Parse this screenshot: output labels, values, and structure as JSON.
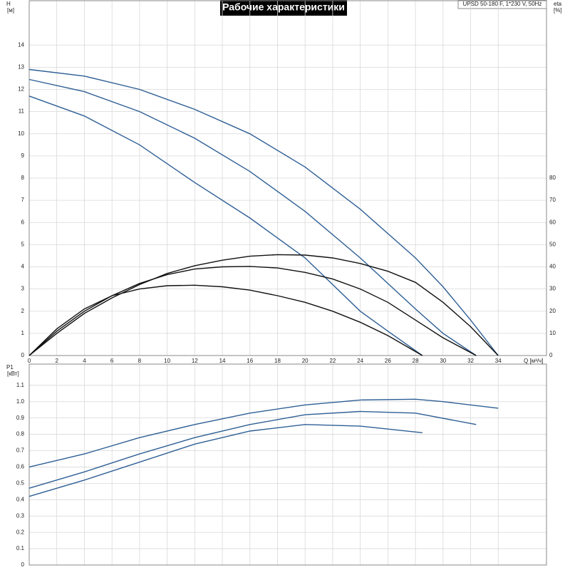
{
  "chart_data": [
    {
      "type": "line",
      "title": "Рабочие характеристики",
      "annotation": "UPSD 50-180 F, 1*230 V, 50Hz",
      "ylabel": [
        "H",
        "[м]"
      ],
      "y2label": [
        "eta",
        "[%]"
      ],
      "xlabel": "Q [м³/ч]",
      "xlim": [
        0,
        37.5
      ],
      "xticks": [
        0,
        2,
        4,
        6,
        8,
        10,
        12,
        14,
        16,
        18,
        20,
        22,
        24,
        26,
        28,
        30,
        32,
        34
      ],
      "ylim": [
        0,
        16
      ],
      "yticks": [
        0,
        1,
        2,
        3,
        4,
        5,
        6,
        7,
        8,
        9,
        10,
        11,
        12,
        13,
        14
      ],
      "y2lim": [
        0,
        160
      ],
      "y2ticks": [
        0,
        10,
        20,
        30,
        40,
        50,
        60,
        70,
        80
      ],
      "grid": true,
      "series": [
        {
          "color": "#2e5f95",
          "x": [
            0,
            4,
            8,
            12,
            16,
            20,
            24,
            28,
            30,
            32,
            34
          ],
          "values": [
            12.9,
            12.6,
            12.0,
            11.1,
            10.0,
            8.5,
            6.6,
            4.4,
            3.1,
            1.6,
            0
          ]
        },
        {
          "color": "#2e5f95",
          "x": [
            0,
            4,
            8,
            12,
            16,
            20,
            24,
            28,
            30,
            32.4
          ],
          "values": [
            12.45,
            11.9,
            11.0,
            9.8,
            8.3,
            6.5,
            4.4,
            2.1,
            1.0,
            0
          ]
        },
        {
          "color": "#2e5f95",
          "x": [
            0,
            4,
            8,
            12,
            16,
            20,
            24,
            26,
            28.5
          ],
          "values": [
            11.7,
            10.8,
            9.5,
            7.8,
            6.2,
            4.4,
            2.0,
            1.1,
            0
          ]
        },
        {
          "color": "#111111",
          "axis": "y2",
          "x": [
            0,
            2,
            4,
            6,
            8,
            10,
            12,
            14,
            16,
            18,
            20,
            22,
            24,
            26,
            28,
            30,
            32,
            34
          ],
          "values": [
            0,
            10,
            19,
            26,
            32,
            37,
            40.5,
            43,
            44.8,
            45.5,
            45.3,
            44,
            41.5,
            38,
            33,
            24,
            13,
            0
          ]
        },
        {
          "color": "#111111",
          "axis": "y2",
          "x": [
            0,
            2,
            4,
            6,
            8,
            10,
            12,
            14,
            16,
            18,
            20,
            22,
            24,
            26,
            28,
            30,
            32.4
          ],
          "values": [
            0,
            11,
            20,
            27,
            32.5,
            36.5,
            39,
            40,
            40.2,
            39.5,
            37.5,
            34.5,
            30,
            24,
            16,
            8,
            0
          ]
        },
        {
          "color": "#111111",
          "axis": "y2",
          "x": [
            0,
            2,
            4,
            6,
            8,
            10,
            12,
            14,
            16,
            18,
            20,
            22,
            24,
            26,
            28.5
          ],
          "values": [
            0,
            12,
            21,
            27,
            30,
            31.5,
            31.7,
            31,
            29.5,
            27,
            24,
            20,
            15,
            9,
            0
          ]
        }
      ]
    },
    {
      "type": "line",
      "ylabel": [
        "P1",
        "[кВт]"
      ],
      "xlim": [
        0,
        37.5
      ],
      "xticks": [
        0,
        2,
        4,
        6,
        8,
        10,
        12,
        14,
        16,
        18,
        20,
        22,
        24,
        26,
        28,
        30,
        32,
        34
      ],
      "xtick_labels": false,
      "ylim": [
        0,
        1.23
      ],
      "yticks": [
        0,
        0.1,
        0.2,
        0.3,
        0.4,
        0.5,
        0.6,
        0.7,
        0.8,
        0.9,
        {
          "value": 1,
          "label": "1.0"
        },
        1.1
      ],
      "grid": true,
      "series": [
        {
          "color": "#2e5f95",
          "x": [
            0,
            4,
            8,
            12,
            16,
            20,
            24,
            28,
            30,
            34
          ],
          "values": [
            0.6,
            0.68,
            0.78,
            0.86,
            0.93,
            0.98,
            1.01,
            1.015,
            1.0,
            0.96
          ]
        },
        {
          "color": "#2e5f95",
          "x": [
            0,
            4,
            8,
            12,
            16,
            20,
            24,
            28,
            32.4
          ],
          "values": [
            0.47,
            0.57,
            0.68,
            0.78,
            0.86,
            0.92,
            0.94,
            0.93,
            0.86
          ]
        },
        {
          "color": "#2e5f95",
          "x": [
            0,
            4,
            8,
            12,
            16,
            20,
            24,
            28.5
          ],
          "values": [
            0.42,
            0.52,
            0.63,
            0.74,
            0.82,
            0.86,
            0.85,
            0.81
          ]
        }
      ]
    }
  ]
}
